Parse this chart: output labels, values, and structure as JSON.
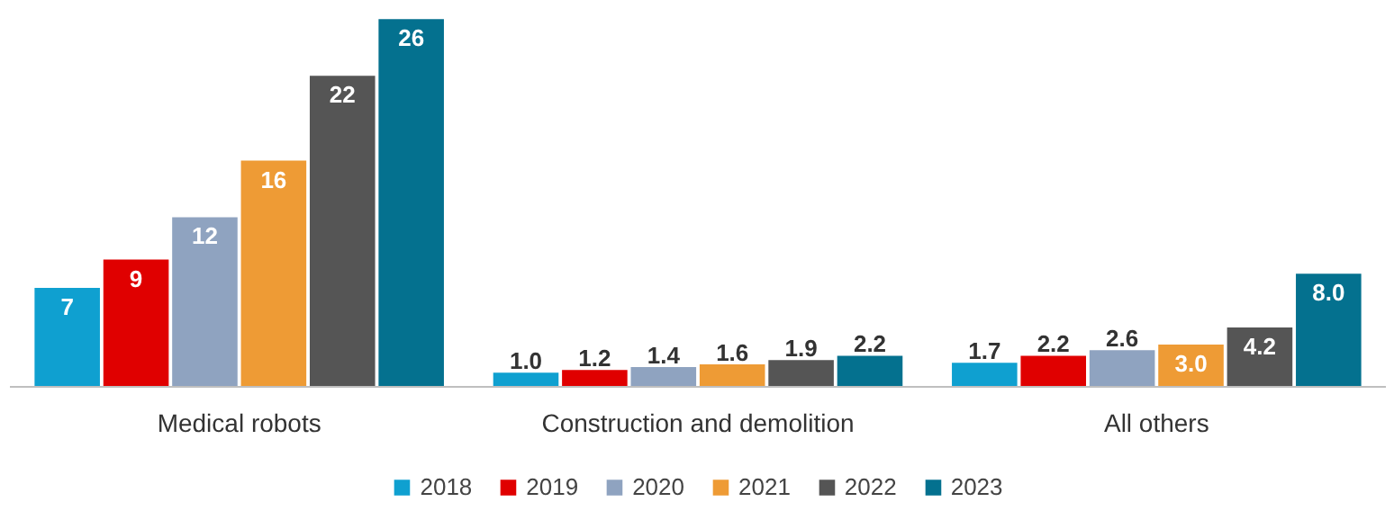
{
  "chart_data": {
    "type": "bar",
    "categories": [
      "Medical robots",
      "Construction and demolition",
      "All others"
    ],
    "series": [
      {
        "name": "2018",
        "color": "#0fa0d0",
        "values": [
          7,
          1.0,
          1.7
        ],
        "value_labels": [
          "7",
          "1.0",
          "1.7"
        ]
      },
      {
        "name": "2019",
        "color": "#e00000",
        "values": [
          9,
          1.2,
          2.2
        ],
        "value_labels": [
          "9",
          "1.2",
          "2.2"
        ]
      },
      {
        "name": "2020",
        "color": "#8fa3c0",
        "values": [
          12,
          1.4,
          2.6
        ],
        "value_labels": [
          "12",
          "1.4",
          "2.6"
        ]
      },
      {
        "name": "2021",
        "color": "#ee9b35",
        "values": [
          16,
          1.6,
          3.0
        ],
        "value_labels": [
          "16",
          "1.6",
          "3.0"
        ]
      },
      {
        "name": "2022",
        "color": "#555555",
        "values": [
          22,
          1.9,
          4.2
        ],
        "value_labels": [
          "22",
          "1.9",
          "4.2"
        ]
      },
      {
        "name": "2023",
        "color": "#04718f",
        "values": [
          26,
          2.2,
          8.0
        ],
        "value_labels": [
          "26",
          "2.2",
          "8.0"
        ]
      }
    ],
    "legend": "bottom"
  }
}
